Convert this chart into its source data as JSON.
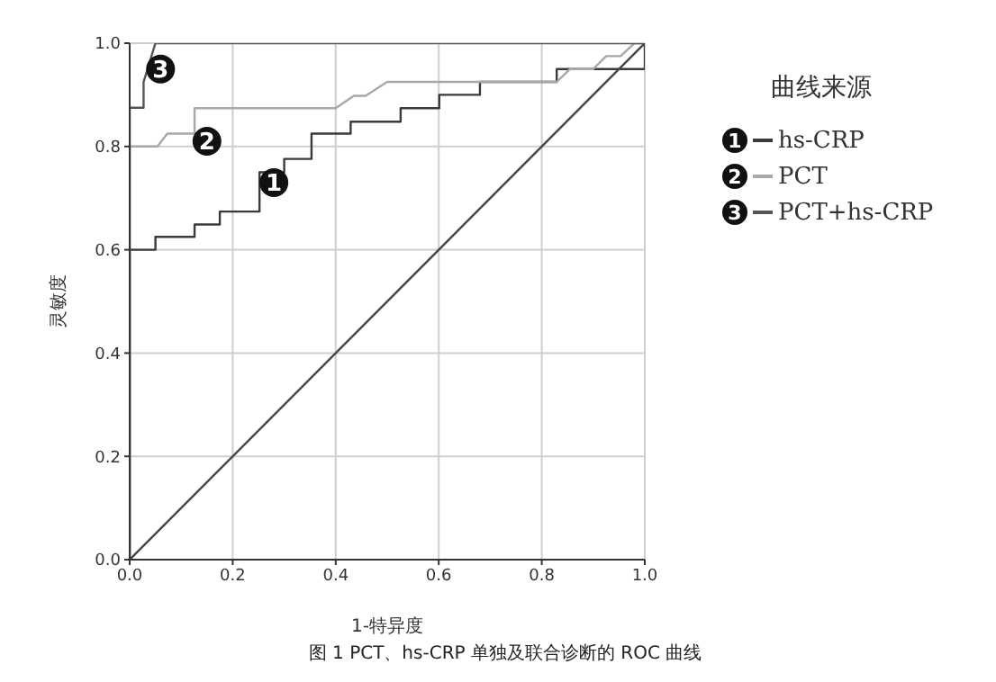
{
  "chart_data": {
    "type": "line",
    "title": "图 1  PCT、hs-CRP 单独及联合诊断的 ROC 曲线",
    "xlabel": "1-特异度",
    "ylabel": "灵敏度",
    "legend_title": "曲线来源",
    "legend": "right",
    "grid": true,
    "marker": "none",
    "line_style": "solid",
    "xlim": [
      0,
      1
    ],
    "ylim": [
      0,
      1
    ],
    "xticks": [
      {
        "value": 0,
        "label": "0.0"
      },
      {
        "value": 0.2,
        "label": "0.2"
      },
      {
        "value": 0.4,
        "label": "0.4"
      },
      {
        "value": 0.6,
        "label": "0.6"
      },
      {
        "value": 0.8,
        "label": "0.8"
      },
      {
        "value": 1,
        "label": "1.0"
      }
    ],
    "yticks": [
      {
        "value": 0,
        "label": "0.0"
      },
      {
        "value": 0.2,
        "label": "0.2"
      },
      {
        "value": 0.4,
        "label": "0.4"
      },
      {
        "value": 0.6,
        "label": "0.6"
      },
      {
        "value": 0.8,
        "label": "0.8"
      },
      {
        "value": 1,
        "label": "1.0"
      }
    ],
    "series": [
      {
        "name": "hs-CRP",
        "color": "#3a3a3a",
        "x": [
          0,
          0,
          0.05,
          0.05,
          0.126,
          0.126,
          0.175,
          0.175,
          0.252,
          0.252,
          0.3,
          0.3,
          0.353,
          0.353,
          0.429,
          0.429,
          0.526,
          0.526,
          0.601,
          0.601,
          0.68,
          0.68,
          0.829,
          0.829,
          1,
          1
        ],
        "values": [
          0,
          0.6,
          0.6,
          0.625,
          0.625,
          0.649,
          0.649,
          0.674,
          0.674,
          0.75,
          0.75,
          0.776,
          0.776,
          0.825,
          0.825,
          0.848,
          0.848,
          0.874,
          0.874,
          0.9,
          0.9,
          0.925,
          0.925,
          0.95,
          0.95,
          1
        ]
      },
      {
        "name": "PCT",
        "color": "#a8a8a8",
        "x": [
          0,
          0,
          0.054,
          0.073,
          0.126,
          0.126,
          0.4,
          0.435,
          0.458,
          0.5,
          0.829,
          0.855,
          0.9,
          0.925,
          0.953,
          0.98,
          1
        ],
        "values": [
          0,
          0.8,
          0.8,
          0.825,
          0.825,
          0.874,
          0.874,
          0.898,
          0.898,
          0.925,
          0.925,
          0.95,
          0.95,
          0.975,
          0.975,
          1,
          1
        ]
      },
      {
        "name": "PCT+hs-CRP",
        "color": "#555555",
        "x": [
          0,
          0,
          0.027,
          0.027,
          0.05,
          1
        ],
        "values": [
          0,
          0.875,
          0.875,
          0.925,
          1,
          1
        ]
      },
      {
        "color": "#444444",
        "x": [
          0,
          1
        ],
        "values": [
          0,
          1
        ]
      }
    ],
    "annotations": [
      {
        "text": "1",
        "x": 0.28,
        "y": 0.73
      },
      {
        "text": "2",
        "x": 0.15,
        "y": 0.81
      },
      {
        "text": "3",
        "x": 0.06,
        "y": 0.95
      }
    ]
  }
}
